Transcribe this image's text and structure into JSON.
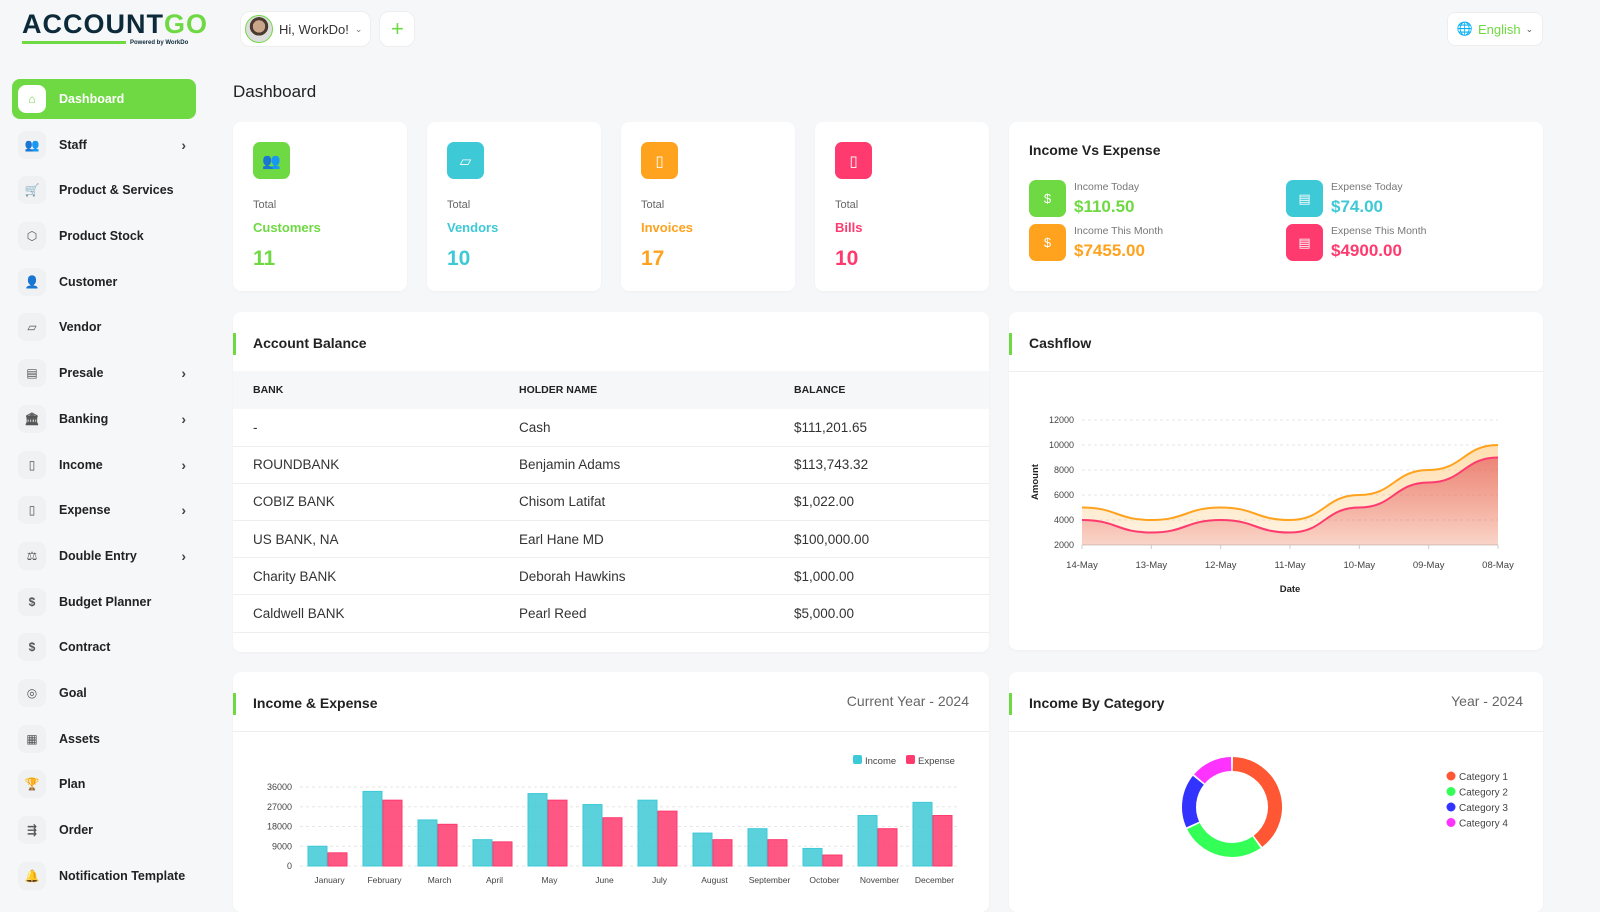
{
  "brand": {
    "name_a": "ACCOUNT",
    "name_b": "GO",
    "tagline": "Powered by WorkDo"
  },
  "header": {
    "greeting": "Hi, WorkDo!",
    "add": "+",
    "language": "English"
  },
  "sidebar": {
    "items": [
      {
        "label": "Dashboard",
        "icon": "home-icon",
        "active": true
      },
      {
        "label": "Staff",
        "icon": "users-icon",
        "chevron": true
      },
      {
        "label": "Product & Services",
        "icon": "cart-icon"
      },
      {
        "label": "Product Stock",
        "icon": "box-icon"
      },
      {
        "label": "Customer",
        "icon": "user-plus-icon"
      },
      {
        "label": "Vendor",
        "icon": "note-icon"
      },
      {
        "label": "Presale",
        "icon": "building-icon",
        "chevron": true
      },
      {
        "label": "Banking",
        "icon": "bank-icon",
        "chevron": true
      },
      {
        "label": "Income",
        "icon": "file-invoice-icon",
        "chevron": true
      },
      {
        "label": "Expense",
        "icon": "receipt-icon",
        "chevron": true
      },
      {
        "label": "Double Entry",
        "icon": "scale-icon",
        "chevron": true
      },
      {
        "label": "Budget Planner",
        "icon": "coins-icon"
      },
      {
        "label": "Contract",
        "icon": "contract-icon"
      },
      {
        "label": "Goal",
        "icon": "target-icon"
      },
      {
        "label": "Assets",
        "icon": "calculator-icon"
      },
      {
        "label": "Plan",
        "icon": "trophy-icon"
      },
      {
        "label": "Order",
        "icon": "order-icon"
      },
      {
        "label": "Notification Template",
        "icon": "bell-icon"
      }
    ]
  },
  "page_title": "Dashboard",
  "stats": [
    {
      "total": "Total",
      "name": "Customers",
      "value": "11",
      "color": "#6fd943",
      "icon": "users-icon"
    },
    {
      "total": "Total",
      "name": "Vendors",
      "value": "10",
      "color": "#3ec9d6",
      "icon": "note-icon"
    },
    {
      "total": "Total",
      "name": "Invoices",
      "value": "17",
      "color": "#ffa21d",
      "icon": "file-icon"
    },
    {
      "total": "Total",
      "name": "Bills",
      "value": "10",
      "color": "#ff3a6e",
      "icon": "receipt-icon"
    }
  ],
  "income_vs_expense": {
    "title": "Income Vs Expense",
    "items": [
      {
        "label": "Income Today",
        "amount": "$110.50",
        "color": "#6fd943"
      },
      {
        "label": "Expense Today",
        "amount": "$74.00",
        "color": "#3ec9d6"
      },
      {
        "label": "Income This Month",
        "amount": "$7455.00",
        "color": "#ffa21d"
      },
      {
        "label": "Expense This Month",
        "amount": "$4900.00",
        "color": "#ff3a6e"
      }
    ]
  },
  "account_balance": {
    "title": "Account Balance",
    "columns": [
      "BANK",
      "HOLDER NAME",
      "BALANCE"
    ],
    "rows": [
      [
        "-",
        "Cash",
        "$111,201.65"
      ],
      [
        "ROUNDBANK",
        "Benjamin Adams",
        "$113,743.32"
      ],
      [
        "COBIZ BANK",
        "Chisom Latifat",
        "$1,022.00"
      ],
      [
        "US BANK, NA",
        "Earl Hane MD",
        "$100,000.00"
      ],
      [
        "Charity BANK",
        "Deborah Hawkins",
        "$1,000.00"
      ],
      [
        "Caldwell BANK",
        "Pearl Reed",
        "$5,000.00"
      ]
    ]
  },
  "cashflow": {
    "title": "Cashflow"
  },
  "income_expense": {
    "title": "Income & Expense",
    "period": "Current Year - 2024"
  },
  "income_by_category": {
    "title": "Income By Category",
    "period": "Year - 2024"
  },
  "chart_data": [
    {
      "type": "area",
      "xlabel": "Date",
      "ylabel": "Amount",
      "x": [
        "14-May",
        "13-May",
        "12-May",
        "11-May",
        "10-May",
        "09-May",
        "08-May"
      ],
      "ylim": [
        2000,
        12000
      ],
      "yticks": [
        2000,
        4000,
        6000,
        8000,
        10000,
        12000
      ],
      "grid": true,
      "series": [
        {
          "values": [
            5000,
            4000,
            5000,
            4000,
            6000,
            8000,
            10000
          ],
          "color": "#ffa21d"
        },
        {
          "values": [
            4000,
            3000,
            4000,
            3000,
            5000,
            7000,
            9000
          ],
          "color": "#ff3a6e"
        }
      ]
    },
    {
      "type": "bar",
      "categories": [
        "January",
        "February",
        "March",
        "April",
        "May",
        "June",
        "July",
        "August",
        "September",
        "October",
        "November",
        "December"
      ],
      "ylim": [
        0,
        36000
      ],
      "yticks": [
        0,
        9000,
        18000,
        27000,
        36000
      ],
      "legend": "top-right",
      "grid": true,
      "series": [
        {
          "name": "Income",
          "color": "#3ec9d6",
          "values": [
            9000,
            34000,
            21000,
            12000,
            33000,
            28000,
            30000,
            15000,
            17000,
            8000,
            23000,
            29000
          ]
        },
        {
          "name": "Expense",
          "color": "#ff3a6e",
          "values": [
            6000,
            30000,
            19000,
            11000,
            30000,
            22000,
            25000,
            12000,
            12000,
            5000,
            17000,
            23000
          ]
        }
      ]
    },
    {
      "type": "pie",
      "donut": true,
      "legend": "right",
      "categories": [
        "Category 1",
        "Category 2",
        "Category 3",
        "Category 4"
      ],
      "values": [
        40,
        28,
        18,
        14
      ],
      "colors": [
        "#ff5733",
        "#33ff57",
        "#3333ff",
        "#ff33ff"
      ]
    }
  ]
}
